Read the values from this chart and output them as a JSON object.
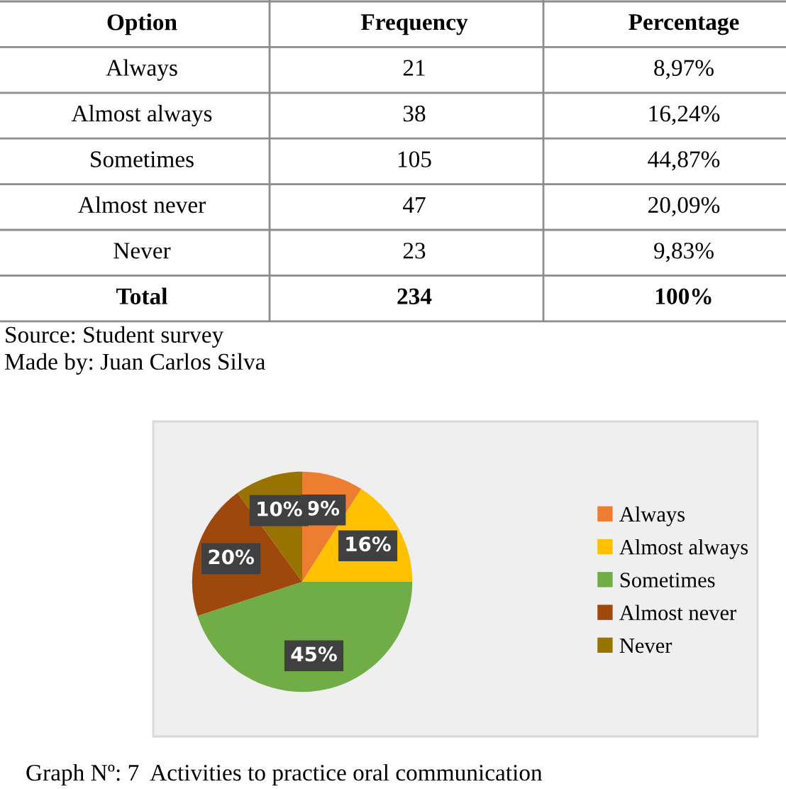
{
  "chart_data": [
    {
      "type": "other",
      "categories": [
        "Option",
        "Frequency",
        "Percentage"
      ],
      "y_categories": [
        "Always",
        "Almost always",
        "Sometimes",
        "Almost never",
        "Never",
        "Total"
      ],
      "cell_labels": [
        [
          "21",
          "8,97%"
        ],
        [
          "38",
          "16,24%"
        ],
        [
          "105",
          "44,87%"
        ],
        [
          "47",
          "20,09%"
        ],
        [
          "23",
          "9,83%"
        ],
        [
          "234",
          "100%"
        ]
      ],
      "annotations": [
        "Source: Student survey",
        "Made by: Juan Carlos Silva"
      ]
    },
    {
      "type": "pie",
      "categories": [
        "Always",
        "Almost always",
        "Sometimes",
        "Almost never",
        "Never"
      ],
      "values": [
        9,
        16,
        45,
        20,
        10
      ],
      "value_labels": [
        "9%",
        "16%",
        "45%",
        "20%",
        "10%"
      ],
      "colors": [
        "#ed7d31",
        "#ffc000",
        "#70ad47",
        "#9e480e",
        "#997300"
      ],
      "legend": "right",
      "annotations": [
        "Graph Nº: 7  Activities to practice oral communication"
      ]
    }
  ]
}
